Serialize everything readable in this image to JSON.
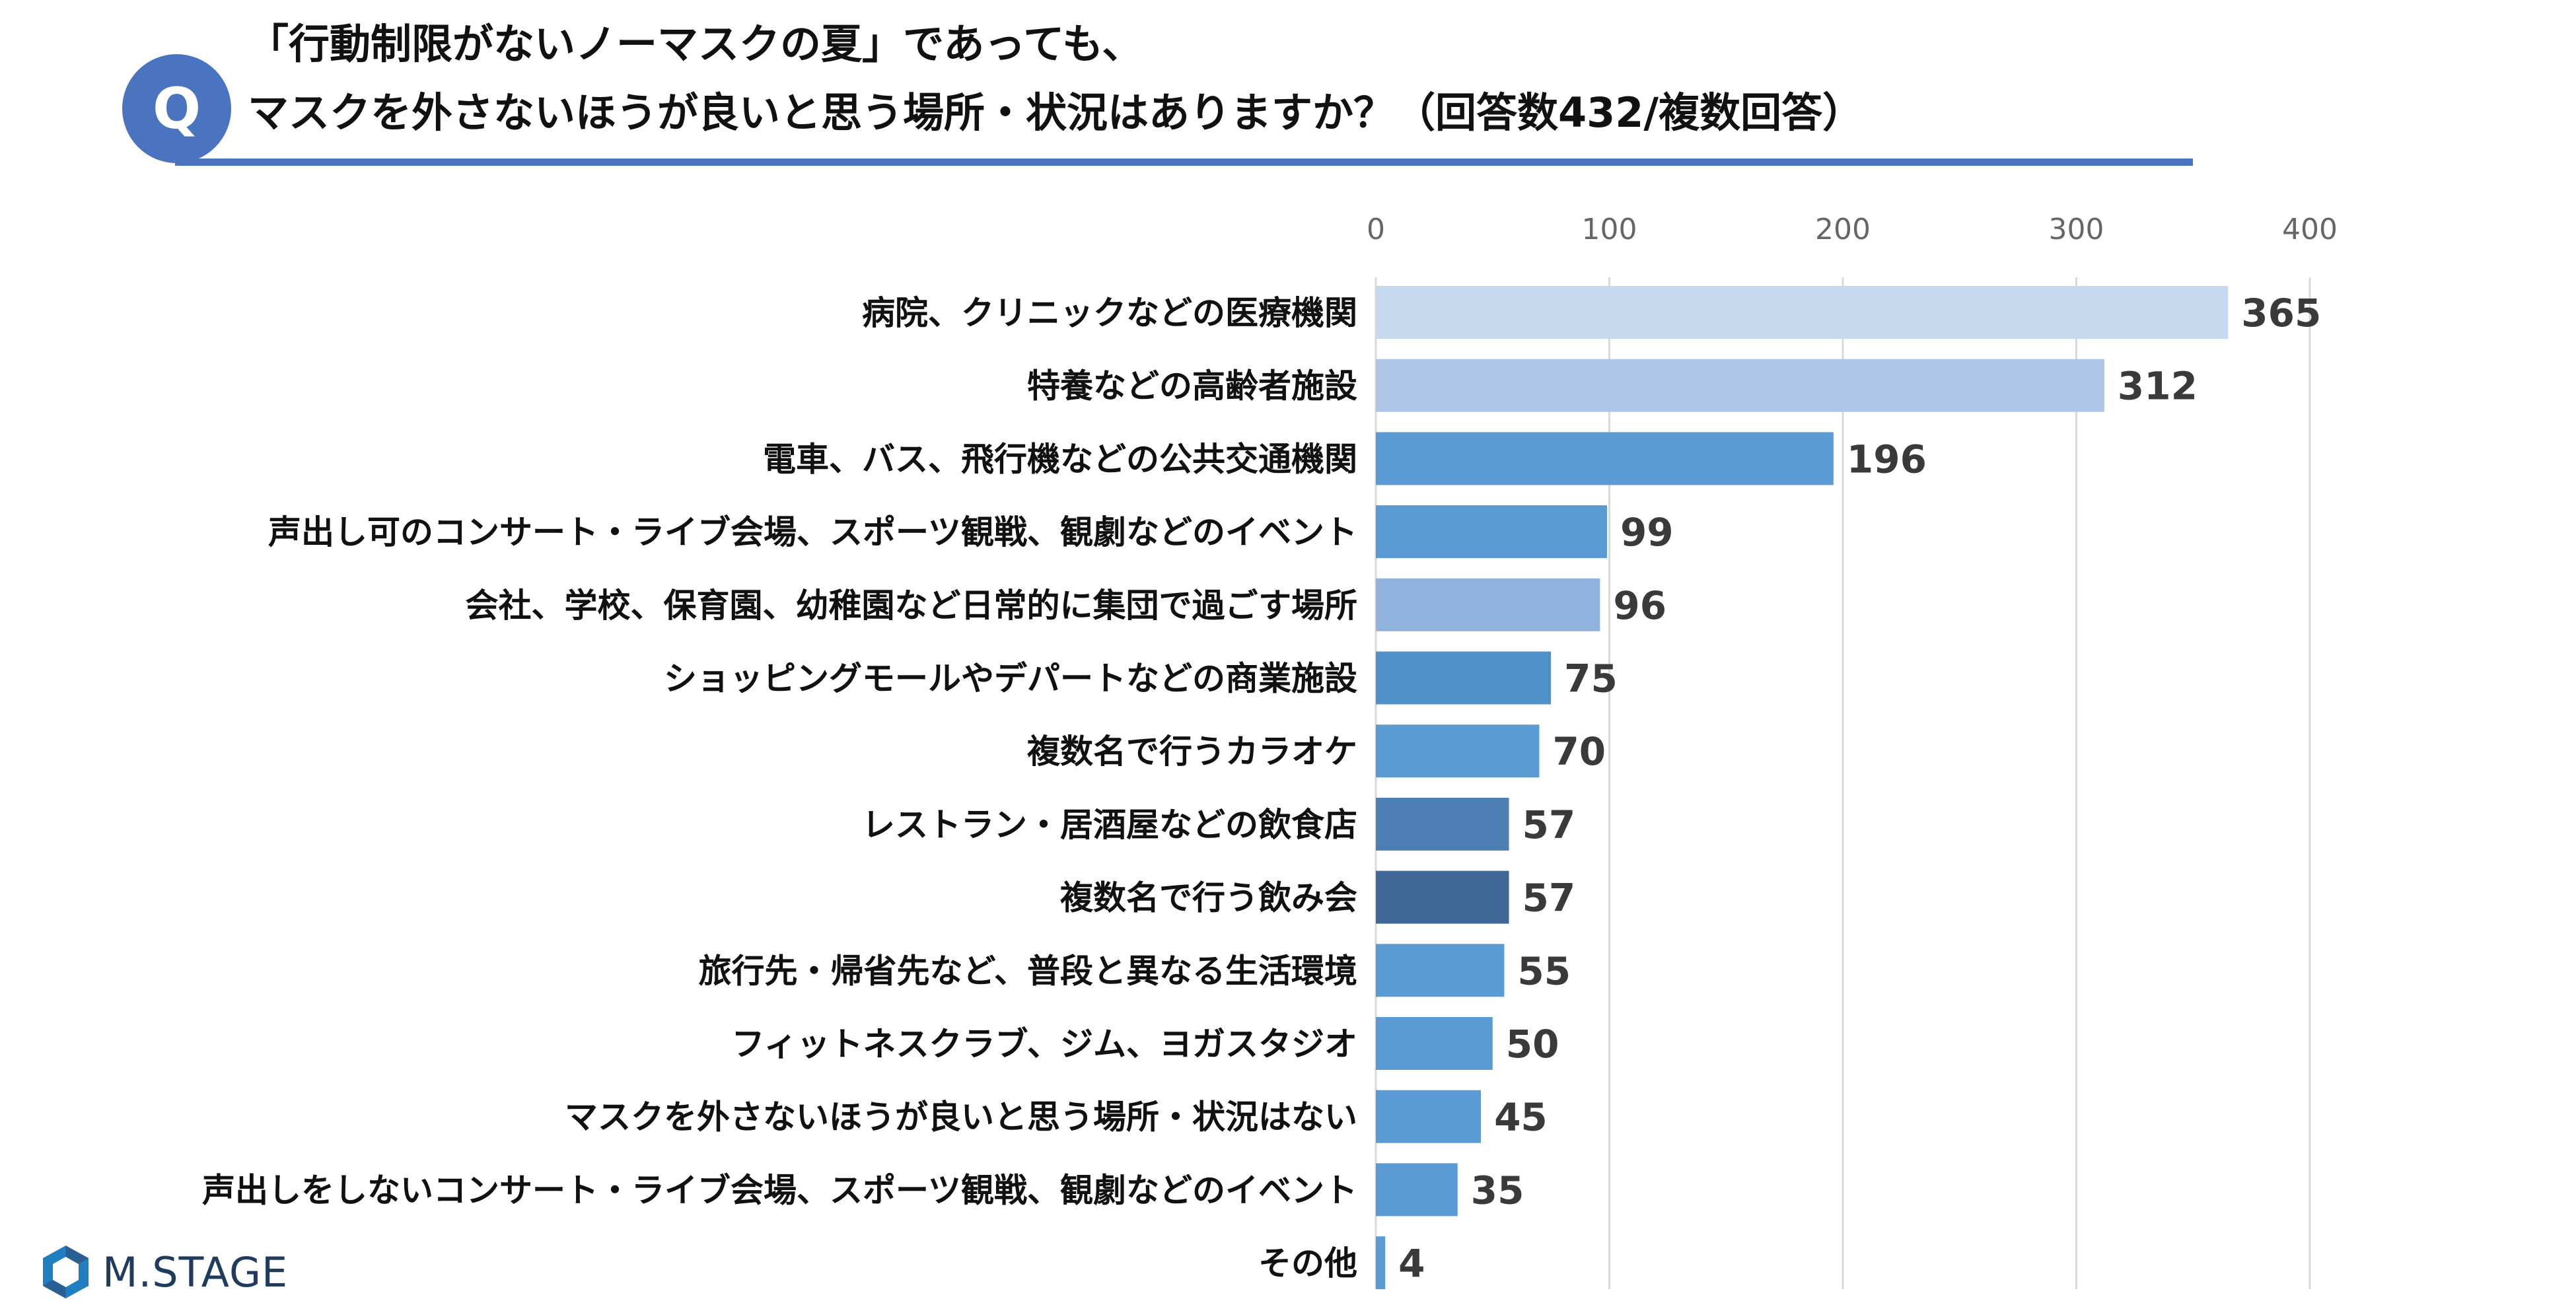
{
  "header": {
    "badge": "Q",
    "title_line1": "「行動制限がないノーマスクの夏」であっても、",
    "title_line2": "マスクを外さないほうが良いと思う場所・状況はありますか？（回答数432/複数回答）",
    "accent_color": "#4a74bf"
  },
  "logo": {
    "text": "M.STAGE",
    "icon": "hexagon-logo-icon"
  },
  "chart_data": {
    "type": "bar",
    "orientation": "horizontal",
    "title": "マスクを外さないほうが良いと思う場所・状況はありますか？（回答数432/複数回答）",
    "xlim": [
      0,
      400
    ],
    "ticks": [
      0,
      100,
      200,
      300,
      400
    ],
    "grid": true,
    "categories": [
      "病院、クリニックなどの医療機関",
      "特養などの高齢者施設",
      "電車、バス、飛行機などの公共交通機関",
      "声出し可のコンサート・ライブ会場、スポーツ観戦、観劇などのイベント",
      "会社、学校、保育園、幼稚園など日常的に集団で過ごす場所",
      "ショッピングモールやデパートなどの商業施設",
      "複数名で行うカラオケ",
      "レストラン・居酒屋などの飲食店",
      "複数名で行う飲み会",
      "旅行先・帰省先など、普段と異なる生活環境",
      "フィットネスクラブ、ジム、ヨガスタジオ",
      "マスクを外さないほうが良いと思う場所・状況はない",
      "声出しをしないコンサート・ライブ会場、スポーツ観戦、観劇などのイベント",
      "その他"
    ],
    "values": [
      365,
      312,
      196,
      99,
      96,
      75,
      70,
      57,
      57,
      55,
      50,
      45,
      35,
      4
    ],
    "colors": [
      "#c6d8ee",
      "#aec6e6",
      "#5b9bd5",
      "#5b9bd5",
      "#8fb2df",
      "#4f90c9",
      "#5b9bd5",
      "#4d7fb4",
      "#3e6795",
      "#5b9bd5",
      "#5b9bd5",
      "#5b9bd5",
      "#5b9bd5",
      "#5b9bd5"
    ],
    "gridline_color": "#d9d9d9"
  }
}
